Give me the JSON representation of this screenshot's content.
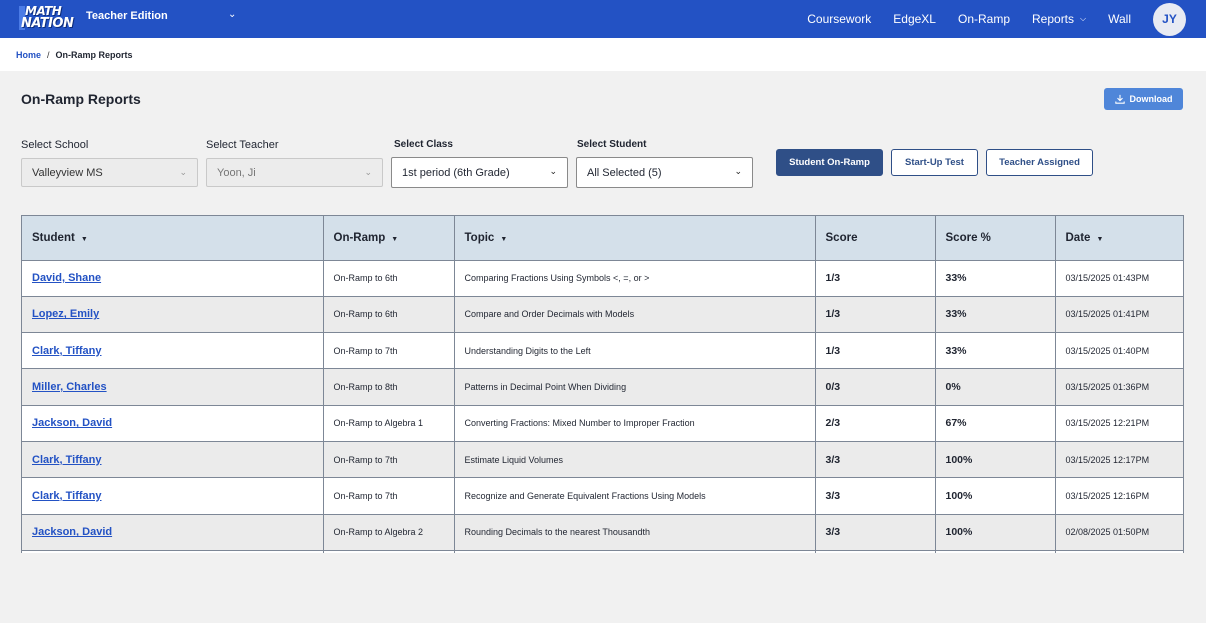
{
  "header": {
    "logo_line1": "MATH",
    "logo_line2": "NATION",
    "edition": "Teacher Edition",
    "nav": [
      "Coursework",
      "EdgeXL",
      "On-Ramp",
      "Reports",
      "Wall"
    ],
    "avatar_initials": "JY",
    "brand_color": "#2352c4"
  },
  "breadcrumb": {
    "home": "Home",
    "separator": "/",
    "current": "On-Ramp Reports"
  },
  "page": {
    "title": "On-Ramp Reports",
    "download_label": "Download"
  },
  "filters": {
    "school_label": "Select School",
    "school_value": "Valleyview MS",
    "teacher_label": "Select Teacher",
    "teacher_value": "Yoon, Ji",
    "class_label": "Select Class",
    "class_value": "1st period (6th Grade)",
    "student_label": "Select Student",
    "student_value": "All Selected (5)"
  },
  "view_tabs": {
    "student_onramp": "Student On-Ramp",
    "startup_test": "Start-Up Test",
    "teacher_assigned": "Teacher Assigned"
  },
  "table": {
    "columns": [
      "Student",
      "On-Ramp",
      "Topic",
      "Score",
      "Score %",
      "Date"
    ],
    "rows": [
      {
        "student": "David, Shane",
        "onramp": "On-Ramp to 6th",
        "topic": "Comparing Fractions Using Symbols <, =, or >",
        "score": "1/3",
        "pct": "33%",
        "date": "03/15/2025 01:43PM"
      },
      {
        "student": "Lopez, Emily",
        "onramp": "On-Ramp to 6th",
        "topic": "Compare and Order Decimals with Models",
        "score": "1/3",
        "pct": "33%",
        "date": "03/15/2025 01:41PM"
      },
      {
        "student": "Clark, Tiffany",
        "onramp": "On-Ramp to 7th",
        "topic": "Understanding Digits to the Left",
        "score": "1/3",
        "pct": "33%",
        "date": "03/15/2025 01:40PM"
      },
      {
        "student": "Miller, Charles",
        "onramp": "On-Ramp to 8th",
        "topic": "Patterns in Decimal Point When Dividing",
        "score": "0/3",
        "pct": "0%",
        "date": "03/15/2025 01:36PM"
      },
      {
        "student": "Jackson, David",
        "onramp": "On-Ramp to Algebra 1",
        "topic": "Converting Fractions: Mixed Number to Improper Fraction",
        "score": "2/3",
        "pct": "67%",
        "date": "03/15/2025 12:21PM"
      },
      {
        "student": "Clark, Tiffany",
        "onramp": "On-Ramp to 7th",
        "topic": "Estimate Liquid Volumes",
        "score": "3/3",
        "pct": "100%",
        "date": "03/15/2025 12:17PM"
      },
      {
        "student": "Clark, Tiffany",
        "onramp": "On-Ramp to 7th",
        "topic": "Recognize and Generate Equivalent Fractions Using Models",
        "score": "3/3",
        "pct": "100%",
        "date": "03/15/2025 12:16PM"
      },
      {
        "student": "Jackson, David",
        "onramp": "On-Ramp to Algebra 2",
        "topic": "Rounding Decimals to the nearest Thousandth",
        "score": "3/3",
        "pct": "100%",
        "date": "02/08/2025 01:50PM"
      },
      {
        "student": "",
        "onramp": "",
        "topic": "",
        "score": "",
        "pct": "",
        "date": ""
      }
    ]
  }
}
